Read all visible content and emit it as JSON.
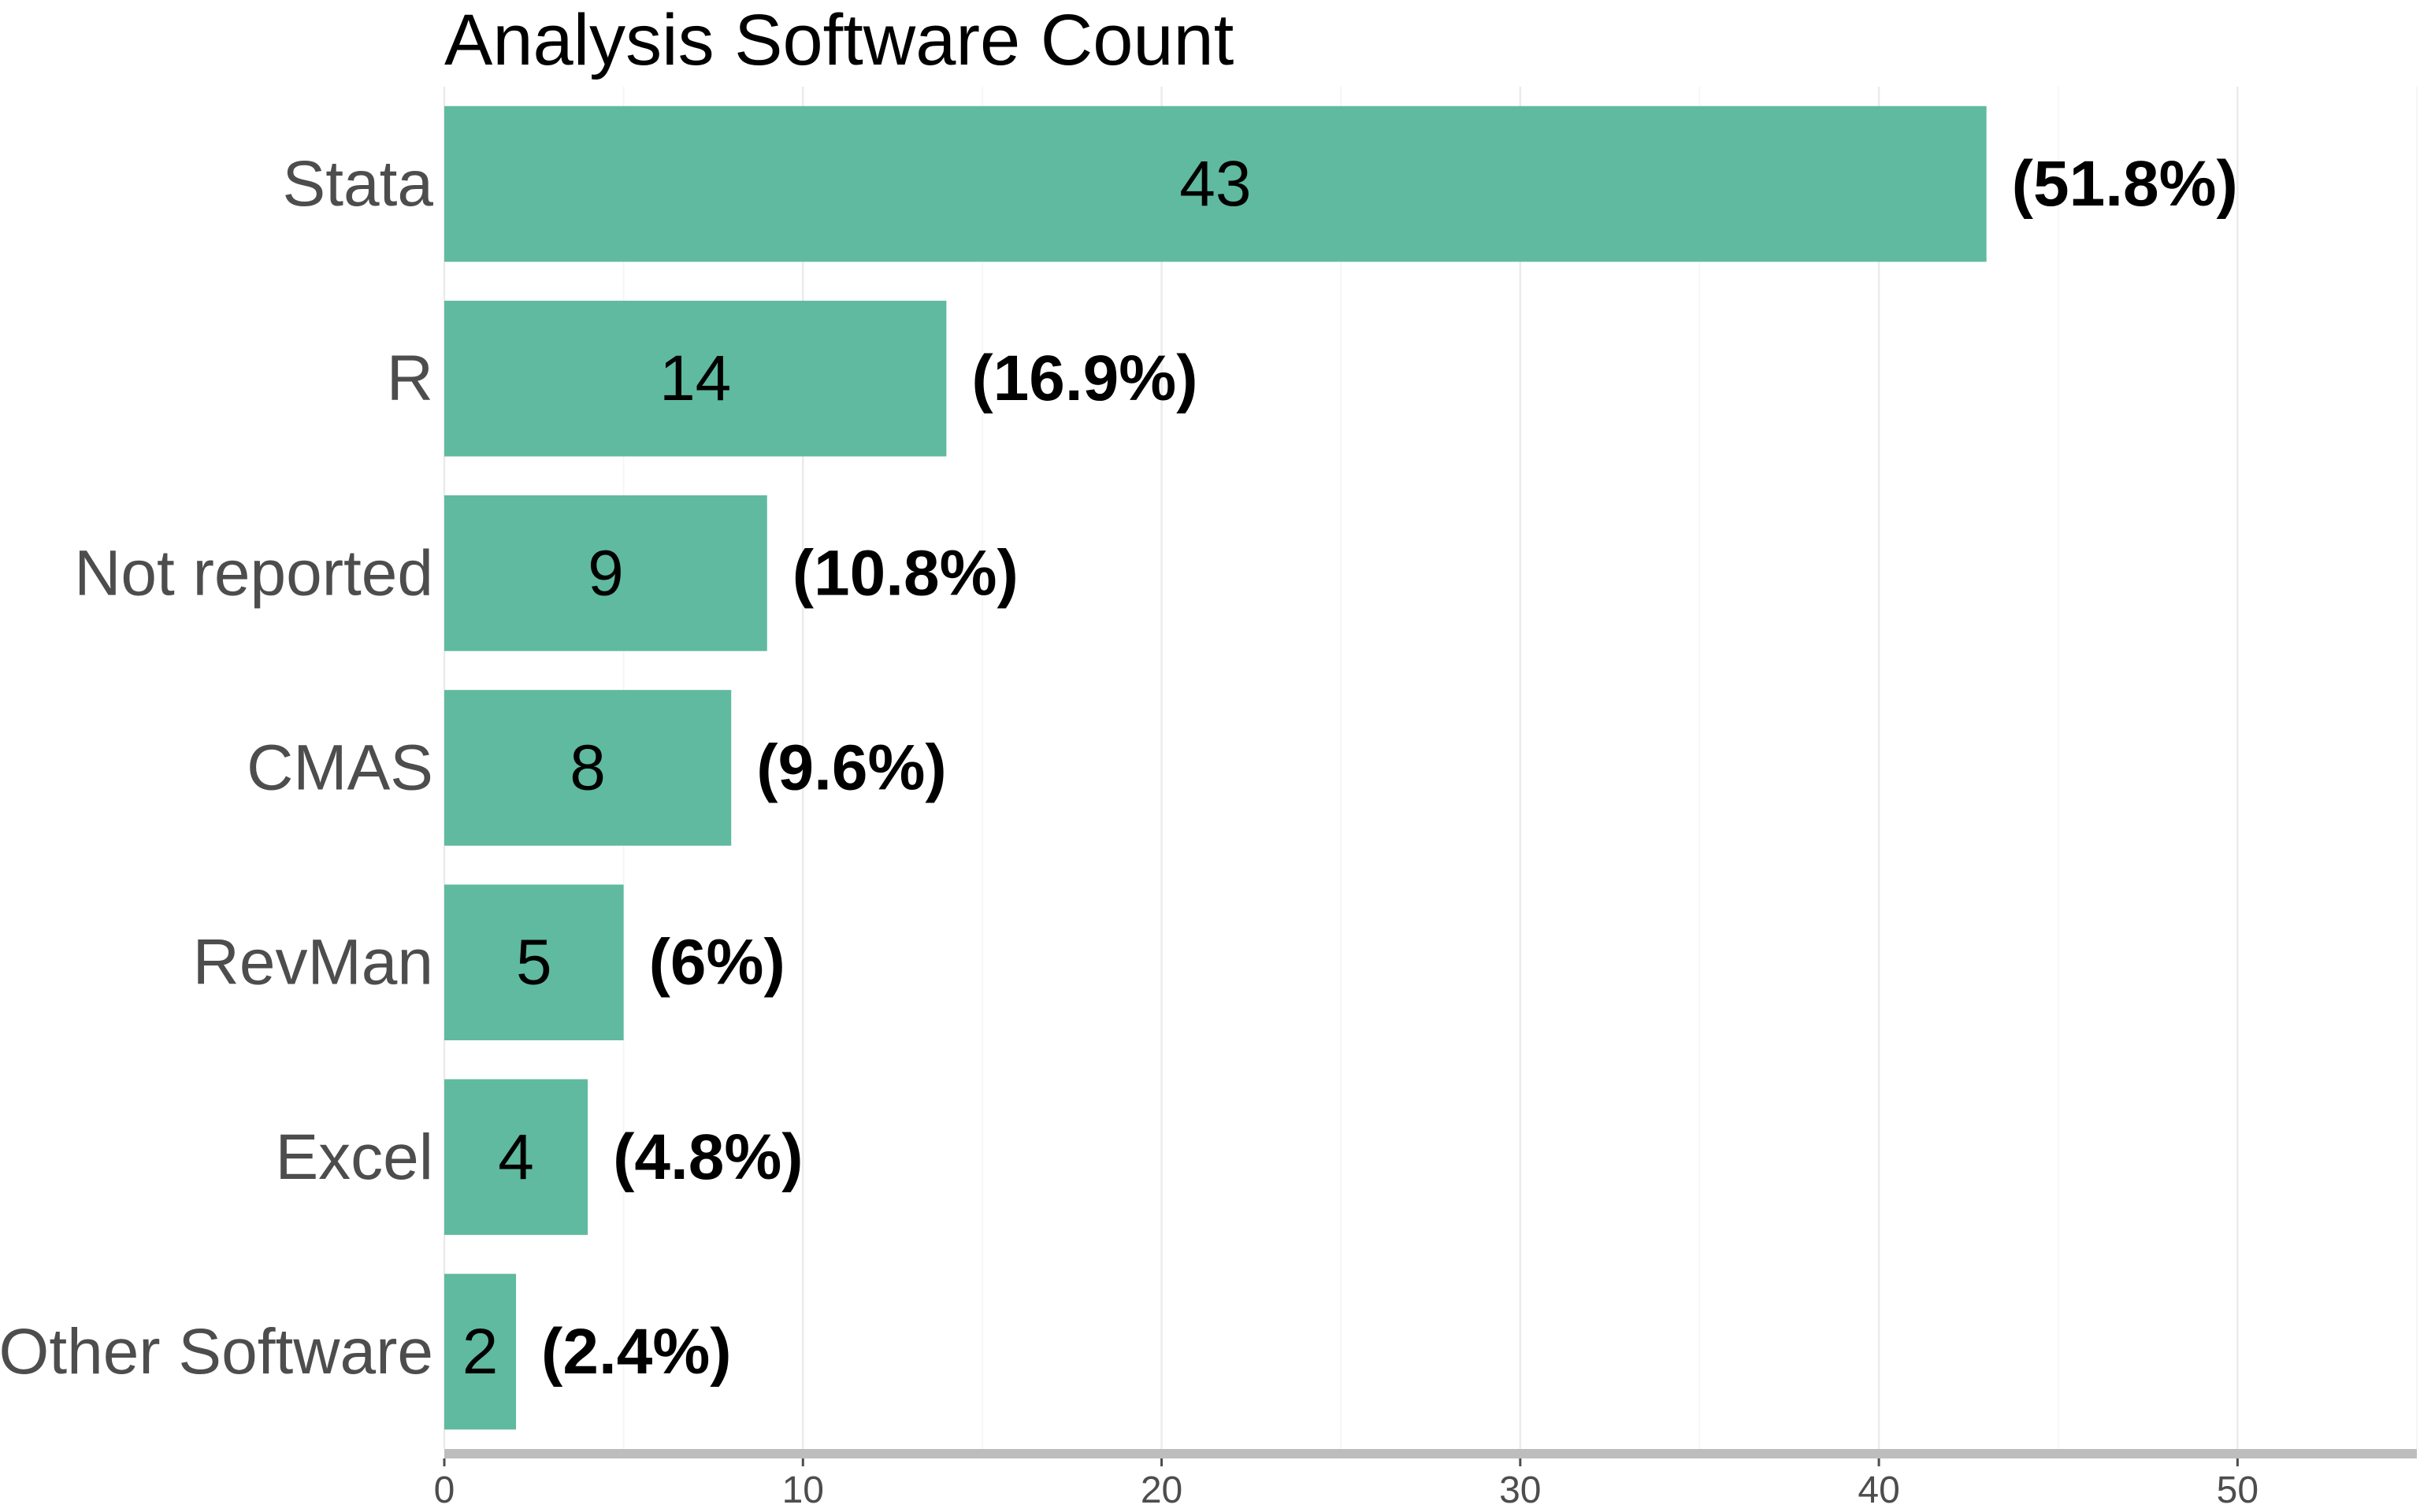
{
  "chart_data": {
    "type": "bar",
    "orientation": "horizontal",
    "title": "Analysis Software Count",
    "xlabel": "",
    "ylabel": "",
    "categories": [
      "Stata",
      "R",
      "Not reported",
      "CMAS",
      "RevMan",
      "Excel",
      "Other Software"
    ],
    "values": [
      43,
      14,
      9,
      8,
      5,
      4,
      2
    ],
    "percent_labels": [
      "(51.8%)",
      "(16.9%)",
      "(10.8%)",
      "(9.6%)",
      "(6%)",
      "(4.8%)",
      "(2.4%)"
    ],
    "xlim": [
      0,
      55
    ],
    "xticks": [
      0,
      10,
      20,
      30,
      40,
      50
    ],
    "grid": true,
    "legend": "none",
    "bar_color": "#5fba9f"
  }
}
